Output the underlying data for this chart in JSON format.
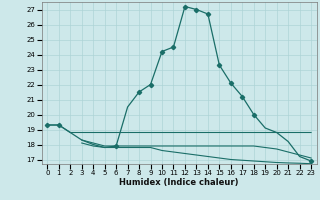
{
  "xlabel": "Humidex (Indice chaleur)",
  "ylabel": "",
  "background_color": "#cde8ea",
  "grid_color": "#aed4d6",
  "line_color": "#1a6e68",
  "xlim": [
    -0.5,
    23.5
  ],
  "ylim": [
    16.7,
    27.5
  ],
  "xticks": [
    0,
    1,
    2,
    3,
    4,
    5,
    6,
    7,
    8,
    9,
    10,
    11,
    12,
    13,
    14,
    15,
    16,
    17,
    18,
    19,
    20,
    21,
    22,
    23
  ],
  "yticks": [
    17,
    18,
    19,
    20,
    21,
    22,
    23,
    24,
    25,
    26,
    27
  ],
  "main_line_x": [
    0,
    1,
    2,
    3,
    4,
    5,
    6,
    7,
    8,
    9,
    10,
    11,
    12,
    13,
    14,
    15,
    16,
    17,
    18,
    19,
    20,
    21,
    22,
    23
  ],
  "main_line_y": [
    19.3,
    19.3,
    18.8,
    18.3,
    18.0,
    17.8,
    17.9,
    20.5,
    21.5,
    22.0,
    24.2,
    24.5,
    27.2,
    27.0,
    26.7,
    23.3,
    22.1,
    21.2,
    20.0,
    19.1,
    18.8,
    18.2,
    17.2,
    16.9
  ],
  "marker_x": [
    0,
    1,
    6,
    8,
    9,
    10,
    11,
    12,
    13,
    14,
    15,
    16,
    17,
    18,
    23
  ],
  "marker_y": [
    19.3,
    19.3,
    17.9,
    21.5,
    22.0,
    24.2,
    24.5,
    27.2,
    27.0,
    26.7,
    23.3,
    22.1,
    21.2,
    20.0,
    16.9
  ],
  "flat_lines": [
    {
      "x": [
        0,
        1,
        2,
        3,
        4,
        5,
        6,
        7,
        8,
        9,
        10,
        11,
        12,
        13,
        14,
        15,
        16,
        17,
        18,
        19,
        20,
        21,
        22,
        23
      ],
      "y": [
        19.3,
        19.3,
        18.8,
        18.8,
        18.8,
        18.8,
        18.8,
        18.8,
        18.8,
        18.8,
        18.8,
        18.8,
        18.8,
        18.8,
        18.8,
        18.8,
        18.8,
        18.8,
        18.8,
        18.8,
        18.8,
        18.8,
        18.8,
        18.8
      ]
    },
    {
      "x": [
        3,
        4,
        5,
        6,
        7,
        8,
        9,
        10,
        11,
        12,
        13,
        14,
        15,
        16,
        17,
        18,
        19,
        20,
        21,
        22,
        23
      ],
      "y": [
        18.3,
        18.1,
        17.9,
        17.9,
        17.9,
        17.9,
        17.9,
        17.9,
        17.9,
        17.9,
        17.9,
        17.9,
        17.9,
        17.9,
        17.9,
        17.9,
        17.8,
        17.7,
        17.5,
        17.3,
        17.1
      ]
    },
    {
      "x": [
        3,
        4,
        5,
        6,
        7,
        8,
        9,
        10,
        11,
        12,
        13,
        14,
        15,
        16,
        17,
        18,
        19,
        20,
        21,
        22,
        23
      ],
      "y": [
        18.1,
        17.9,
        17.8,
        17.8,
        17.8,
        17.8,
        17.8,
        17.6,
        17.5,
        17.4,
        17.3,
        17.2,
        17.1,
        17.0,
        16.95,
        16.9,
        16.85,
        16.8,
        16.77,
        16.75,
        16.72
      ]
    }
  ]
}
